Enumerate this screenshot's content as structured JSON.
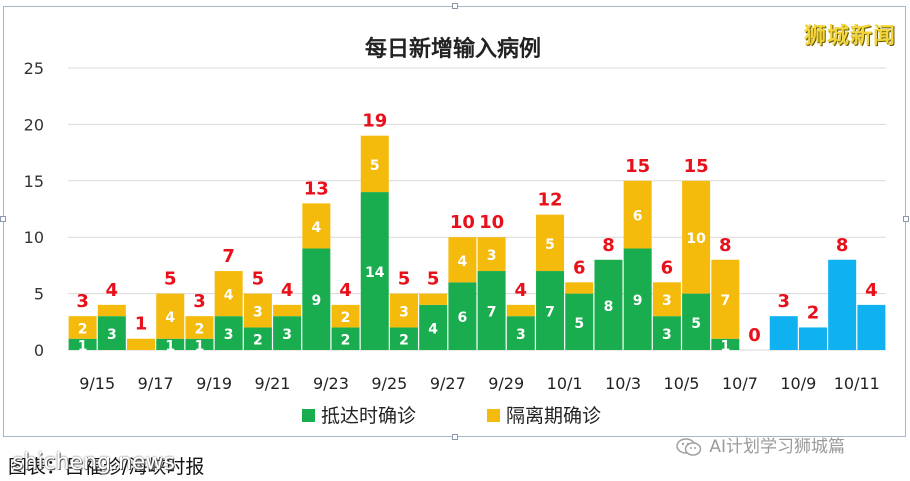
{
  "watermark": "狮城新闻",
  "footer": {
    "caption": "图表：吕福珍/海峡时报",
    "overlay": "shicheng.news",
    "wechat_account": "AI计划学习狮城篇"
  },
  "colors": {
    "arrival": "#1aad4f",
    "quarantine": "#f5bb0c",
    "recent": "#0fb1f0",
    "total_label": "#e8101b",
    "value_label": "#ffffff"
  },
  "chart_data": {
    "type": "bar",
    "stacked": true,
    "title": "每日新增输入病例",
    "categories": [
      "9/15",
      "9/16",
      "9/17",
      "9/18",
      "9/19",
      "9/20",
      "9/21",
      "9/22",
      "9/23",
      "9/24",
      "9/25",
      "9/26",
      "9/27",
      "9/28",
      "9/29",
      "9/30",
      "10/1",
      "10/2",
      "10/3",
      "10/4",
      "10/5",
      "10/6",
      "10/7",
      "10/8",
      "10/9",
      "10/10",
      "10/11",
      "10/12"
    ],
    "tick_labels": [
      "9/15",
      "",
      "9/17",
      "",
      "9/19",
      "",
      "9/21",
      "",
      "9/23",
      "",
      "9/25",
      "",
      "9/27",
      "",
      "9/29",
      "",
      "10/1",
      "",
      "10/3",
      "",
      "10/5",
      "",
      "10/7",
      "",
      "10/9",
      "",
      "10/11",
      ""
    ],
    "series": [
      {
        "name": "抵达时确诊",
        "values": [
          1,
          3,
          0,
          1,
          1,
          3,
          2,
          3,
          9,
          2,
          14,
          2,
          4,
          6,
          7,
          3,
          7,
          5,
          8,
          9,
          3,
          5,
          1,
          0,
          null,
          null,
          null,
          null
        ]
      },
      {
        "name": "隔离期确诊",
        "values": [
          2,
          1,
          1,
          4,
          2,
          4,
          3,
          1,
          4,
          2,
          5,
          3,
          1,
          4,
          3,
          1,
          5,
          1,
          0,
          6,
          3,
          10,
          7,
          0,
          null,
          null,
          null,
          null
        ]
      },
      {
        "name": "",
        "values": [
          null,
          null,
          null,
          null,
          null,
          null,
          null,
          null,
          null,
          null,
          null,
          null,
          null,
          null,
          null,
          null,
          null,
          null,
          null,
          null,
          null,
          null,
          null,
          null,
          3,
          2,
          8,
          4
        ]
      }
    ],
    "segment_labels": {
      "抵达时确诊": [
        "1",
        "3",
        "",
        "1",
        "1",
        "3",
        "2",
        "3",
        "9",
        "2",
        "14",
        "2",
        "4",
        "6",
        "7",
        "3",
        "7",
        "5",
        "8",
        "9",
        "3",
        "5",
        "1",
        "",
        "",
        "",
        "",
        ""
      ],
      "隔离期确诊": [
        "2",
        "",
        "",
        "4",
        "2",
        "4",
        "3",
        "",
        "4",
        "2",
        "5",
        "3",
        "",
        "4",
        "3",
        "",
        "5",
        "",
        "",
        "6",
        "3",
        "10",
        "7",
        "",
        "",
        "",
        "",
        ""
      ]
    },
    "totals": [
      3,
      4,
      1,
      5,
      3,
      7,
      5,
      4,
      13,
      4,
      19,
      5,
      5,
      10,
      10,
      4,
      12,
      6,
      8,
      15,
      6,
      15,
      8,
      0,
      3,
      2,
      8,
      4
    ],
    "ylim": [
      0,
      25
    ],
    "yticks": [
      0,
      5,
      10,
      15,
      20,
      25
    ],
    "legend": [
      "抵达时确诊",
      "隔离期确诊"
    ],
    "legend_position": "bottom",
    "grid": true
  }
}
